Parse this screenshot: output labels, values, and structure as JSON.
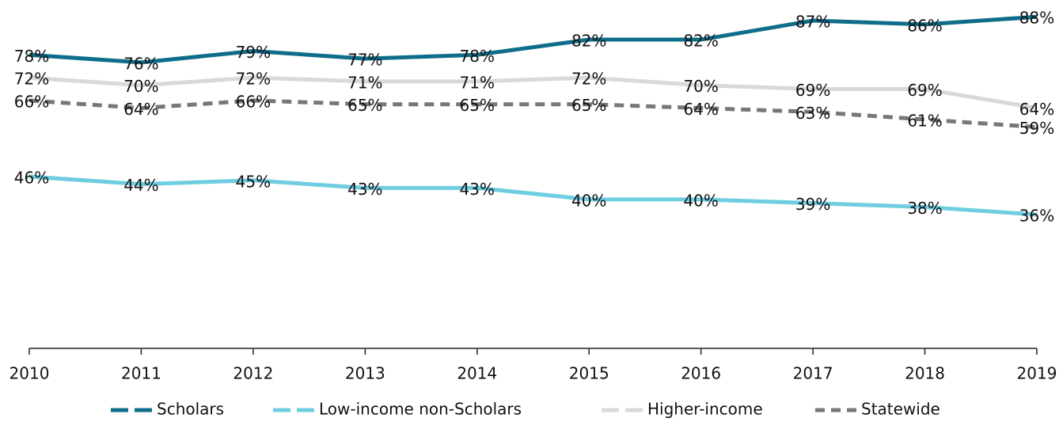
{
  "chart_data": {
    "type": "line",
    "x": [
      2010,
      2011,
      2012,
      2013,
      2014,
      2015,
      2016,
      2017,
      2018,
      2019
    ],
    "xlim": [
      2010,
      2019
    ],
    "ylim": [
      0,
      92
    ],
    "legend": "bottom",
    "series": [
      {
        "name": "Scholars",
        "color": "#0e6d8a",
        "dash": "solid",
        "values": [
          78,
          76,
          79,
          77,
          78,
          82,
          82,
          87,
          86,
          88
        ],
        "value_labels": [
          "78%",
          "76%",
          "79%",
          "77%",
          "78%",
          "82%",
          "82%",
          "87%",
          "86%",
          "88%"
        ]
      },
      {
        "name": "Low-income non-Scholars",
        "color": "#6fcde1",
        "dash": "solid",
        "values": [
          46,
          44,
          45,
          43,
          43,
          40,
          40,
          39,
          38,
          36
        ],
        "value_labels": [
          "46%",
          "44%",
          "45%",
          "43%",
          "43%",
          "40%",
          "40%",
          "39%",
          "38%",
          "36%"
        ]
      },
      {
        "name": "Higher-income",
        "color": "#d9d9d9",
        "dash": "solid",
        "values": [
          72,
          70,
          72,
          71,
          71,
          72,
          70,
          69,
          69,
          64
        ],
        "value_labels": [
          "72%",
          "70%",
          "72%",
          "71%",
          "71%",
          "72%",
          "70%",
          "69%",
          "69%",
          "64%"
        ]
      },
      {
        "name": "Statewide",
        "color": "#77777a",
        "dash": "dashed",
        "values": [
          66,
          64,
          66,
          65,
          65,
          65,
          64,
          63,
          61,
          59
        ],
        "value_labels": [
          "66%",
          "64%",
          "66%",
          "65%",
          "65%",
          "65%",
          "64%",
          "63%",
          "61%",
          "59%"
        ]
      }
    ]
  }
}
